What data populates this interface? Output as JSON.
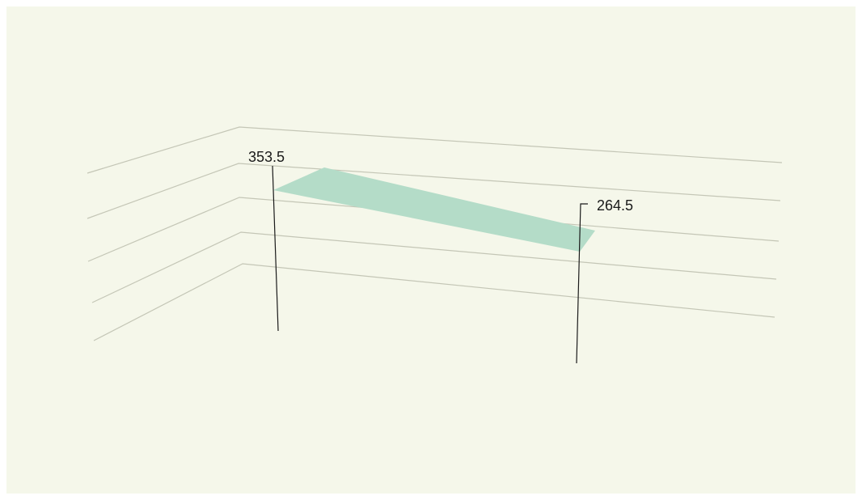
{
  "colors": {
    "background": "#f5f7ea",
    "grid": "#c4c6b6",
    "band": "#b4dcc8",
    "leader": "#1a1a1a",
    "text": "#1a1a1a"
  },
  "chart_data": {
    "type": "area",
    "title": "",
    "xlabel": "",
    "ylabel": "",
    "grid": true,
    "legend": "none",
    "perspective": "3d",
    "gridline_count": 5,
    "series": [
      {
        "values": [
          353.5,
          264.5
        ]
      }
    ],
    "data_labels": [
      "353.5",
      "264.5"
    ]
  }
}
